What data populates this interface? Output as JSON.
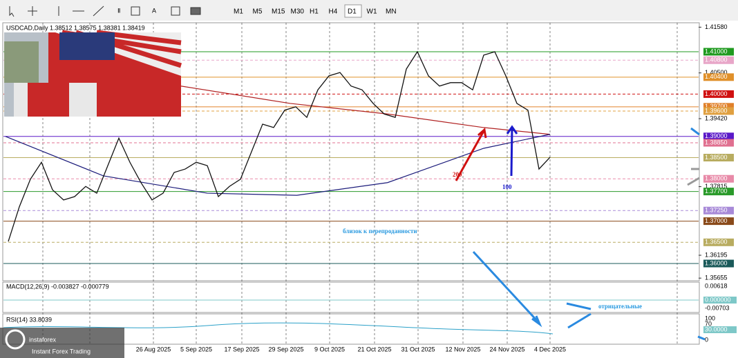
{
  "toolbar": {
    "timeframes": [
      "M1",
      "M5",
      "M15",
      "M30",
      "H1",
      "H4",
      "D1",
      "W1",
      "MN"
    ],
    "active": "D1"
  },
  "chart": {
    "header": "USDCAD,Daily  1.38512 1.38575 1.38381 1.38419",
    "ylim": [
      1.35593,
      1.41684
    ],
    "yticks": [
      {
        "value": 1.4158,
        "label": "1.41580"
      },
      {
        "value": 1.405,
        "label": "1.40500"
      },
      {
        "value": 1.3942,
        "label": "1.39420"
      },
      {
        "value": 1.37815,
        "label": "1.37815"
      },
      {
        "value": 1.36195,
        "label": "1.36195"
      },
      {
        "value": 1.35655,
        "label": "1.35655"
      }
    ],
    "levels": [
      {
        "value": 1.41,
        "label": "1.41000",
        "color": "#1f9a1f"
      },
      {
        "value": 1.408,
        "label": "1.40800",
        "color": "#e8a6c8"
      },
      {
        "value": 1.404,
        "label": "1.40400",
        "color": "#e0902a"
      },
      {
        "value": 1.4,
        "label": "1.40000",
        "color": "#d01010"
      },
      {
        "value": 1.397,
        "label": "1.39700",
        "color": "#e0802a"
      },
      {
        "value": 1.396,
        "label": "1.39600",
        "color": "#e0a040"
      },
      {
        "value": 1.39,
        "label": "1.39000",
        "color": "#5a18c8"
      },
      {
        "value": 1.3885,
        "label": "1.38850",
        "color": "#e07090"
      },
      {
        "value": 1.385,
        "label": "1.38500",
        "color": "#b8ac60"
      },
      {
        "value": 1.38,
        "label": "1.38000",
        "color": "#e88aa8"
      },
      {
        "value": 1.377,
        "label": "1.37700",
        "color": "#2a9a2a"
      },
      {
        "value": 1.3725,
        "label": "1.37250",
        "color": "#a88ad8"
      },
      {
        "value": 1.37,
        "label": "1.37000",
        "color": "#8a4a1a"
      },
      {
        "value": 1.365,
        "label": "1.36500",
        "color": "#b8ac60"
      },
      {
        "value": 1.36,
        "label": "1.36000",
        "color": "#1a5a5a"
      }
    ],
    "close": [
      1.3652,
      1.3734,
      1.3799,
      1.3839,
      1.3774,
      1.375,
      1.3758,
      1.3782,
      1.3766,
      1.3831,
      1.3896,
      1.3839,
      1.3791,
      1.375,
      1.3766,
      1.3815,
      1.3823,
      1.3839,
      1.3831,
      1.3758,
      1.3782,
      1.3799,
      1.3864,
      1.3929,
      1.3921,
      1.3962,
      1.397,
      1.3945,
      1.401,
      1.4043,
      1.4051,
      1.4019,
      1.401,
      1.3978,
      1.3953,
      1.3945,
      1.4059,
      1.41,
      1.4043,
      1.4019,
      1.4027,
      1.4027,
      1.401,
      1.4092,
      1.41,
      1.4043,
      1.3978,
      1.3962,
      1.3823,
      1.3851
    ],
    "ma200": {
      "x": [
        15.6,
        25.5,
        34.3,
        43,
        49
      ],
      "values": [
        1.4019,
        1.3978,
        1.3953,
        1.3921,
        1.3905
      ]
    },
    "ma100": {
      "x": [
        -0.25,
        8.6,
        18,
        26.1,
        34.3,
        43,
        49
      ],
      "values": [
        1.39,
        1.3807,
        1.3766,
        1.3761,
        1.3791,
        1.3872,
        1.3905
      ]
    },
    "dates": [
      "26 Aug 2025",
      "5 Sep 2025",
      "17 Sep 2025",
      "29 Sep 2025",
      "9 Oct 2025",
      "21 Oct 2025",
      "31 Oct 2025",
      "12 Nov 2025",
      "24 Nov 2025",
      "4 Dec 2025"
    ]
  },
  "macd": {
    "label": "MACD(12,26,9) -0.003827 -0.000779",
    "ticks": [
      "0.00618",
      "0.000000",
      "-0.00703"
    ]
  },
  "rsi": {
    "label": "RSI(14) 33.8039",
    "ticks": [
      "100",
      "70",
      "30.0000",
      "0"
    ]
  },
  "annotations": {
    "ma200": "200",
    "ma100": "100",
    "oversold": "близок к перепроданности",
    "negative": "отрицательные"
  },
  "logo": {
    "name": "instaforex",
    "tagline": "Instant Forex Trading"
  }
}
